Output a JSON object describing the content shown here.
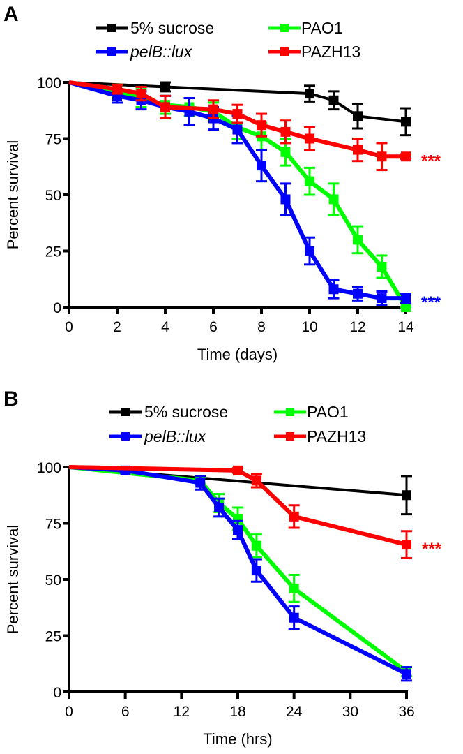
{
  "chart_data": [
    {
      "type": "line",
      "panel": "A",
      "title": "",
      "xlabel": "Time (days)",
      "ylabel": "Percent survival",
      "xlim": [
        0,
        14
      ],
      "ylim": [
        0,
        100
      ],
      "xticks": [
        "0",
        "2",
        "4",
        "6",
        "8",
        "10",
        "12",
        "14"
      ],
      "yticks": [
        "0",
        "25",
        "50",
        "75",
        "100"
      ],
      "grid": false,
      "legend": "top",
      "series": [
        {
          "name": "5% sucrose",
          "italic": false,
          "color": "#000000",
          "x": [
            0,
            4,
            10,
            11,
            12,
            14
          ],
          "values": [
            100,
            98,
            95,
            92,
            85,
            82.5
          ],
          "err": [
            0,
            2,
            3.5,
            4,
            5.5,
            6
          ]
        },
        {
          "name": "PAO1",
          "italic": false,
          "color": "#00ff00",
          "x": [
            0,
            2,
            3,
            4,
            5,
            6,
            7,
            8,
            9,
            10,
            11,
            12,
            13,
            14
          ],
          "values": [
            100,
            96,
            93,
            90,
            89,
            87,
            80,
            76,
            69,
            56,
            48,
            30,
            18,
            0
          ],
          "err": [
            0,
            3,
            4,
            4,
            4,
            4,
            5,
            6,
            6,
            6,
            7,
            6,
            5,
            2
          ]
        },
        {
          "name": "pelB::lux",
          "italic": true,
          "color": "#0000ff",
          "x": [
            0,
            2,
            3,
            4,
            5,
            6,
            7,
            8,
            9,
            10,
            11,
            12,
            13,
            14
          ],
          "values": [
            100,
            94,
            92,
            89,
            87,
            84,
            79,
            63,
            48,
            25,
            8,
            6,
            4,
            4
          ],
          "err": [
            0,
            3,
            4,
            5,
            6,
            5,
            6,
            7,
            7,
            6,
            4,
            3,
            3,
            2
          ]
        },
        {
          "name": "PAZH13",
          "italic": false,
          "color": "#ff0000",
          "x": [
            0,
            2,
            3,
            4,
            6,
            7,
            8,
            9,
            10,
            12,
            13,
            14
          ],
          "values": [
            100,
            97,
            95,
            89,
            88,
            86,
            81,
            78,
            75,
            70,
            67,
            67
          ],
          "err": [
            0,
            2,
            3,
            5,
            4,
            4,
            5,
            5,
            5,
            5,
            6,
            1
          ]
        }
      ],
      "annotations": [
        {
          "text": "***",
          "series": "PAZH13",
          "y": 67,
          "color": "#ff0000"
        },
        {
          "text": "***",
          "series": "pelB::lux",
          "y": 4,
          "color": "#0000ff"
        }
      ]
    },
    {
      "type": "line",
      "panel": "B",
      "title": "",
      "xlabel": "Time (hrs)",
      "ylabel": "Percent survival",
      "xlim": [
        0,
        36
      ],
      "ylim": [
        0,
        100
      ],
      "xticks": [
        "0",
        "6",
        "12",
        "18",
        "24",
        "30",
        "36"
      ],
      "yticks": [
        "0",
        "25",
        "50",
        "75",
        "100"
      ],
      "grid": false,
      "legend": "top",
      "series": [
        {
          "name": "5% sucrose",
          "italic": false,
          "color": "#000000",
          "x": [
            0,
            36
          ],
          "values": [
            100,
            87.5
          ],
          "err": [
            0,
            8.5
          ]
        },
        {
          "name": "PAO1",
          "italic": false,
          "color": "#00ff00",
          "x": [
            0,
            14,
            16,
            18,
            20,
            24,
            36
          ],
          "values": [
            100,
            94,
            84,
            77,
            65,
            46,
            9
          ],
          "err": [
            0,
            1.5,
            4,
            5,
            5,
            6,
            2
          ]
        },
        {
          "name": "pelB::lux",
          "italic": true,
          "color": "#0000ff",
          "x": [
            0,
            6,
            14,
            16,
            18,
            20,
            24,
            36
          ],
          "values": [
            100,
            98.5,
            93,
            82,
            72,
            54,
            33,
            8
          ],
          "err": [
            0,
            1,
            3,
            4,
            4,
            5,
            5,
            3
          ]
        },
        {
          "name": "PAZH13",
          "italic": false,
          "color": "#ff0000",
          "x": [
            0,
            18,
            20,
            24,
            36
          ],
          "values": [
            100,
            98.5,
            94,
            78,
            65.5
          ],
          "err": [
            0,
            1,
            3,
            5,
            6
          ]
        }
      ],
      "annotations": [
        {
          "text": "***",
          "series": "PAZH13",
          "y": 65.5,
          "color": "#ff0000"
        }
      ]
    }
  ]
}
